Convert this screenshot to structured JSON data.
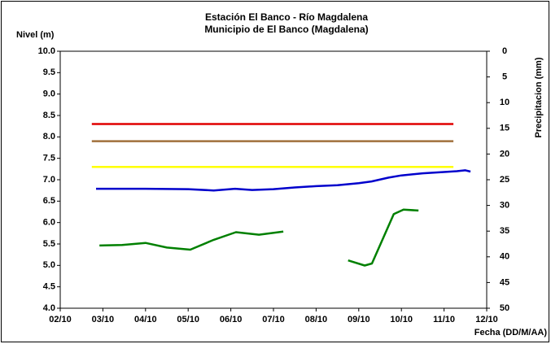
{
  "chart_data": {
    "type": "line",
    "title": "Estación El Banco - Río Magdalena",
    "subtitle": "Municipio de El Banco (Magdalena)",
    "y_label": "Nivel (m)",
    "y2_label": "Precipitacion (mm)",
    "x_label": "Fecha (DD/M/AA)",
    "xlim": [
      0,
      10
    ],
    "xticks": [
      {
        "value": 0,
        "label": "02/10"
      },
      {
        "value": 1,
        "label": "03/10"
      },
      {
        "value": 2,
        "label": "04/10"
      },
      {
        "value": 3,
        "label": "05/10"
      },
      {
        "value": 4,
        "label": "06/10"
      },
      {
        "value": 5,
        "label": "07/10"
      },
      {
        "value": 6,
        "label": "08/10"
      },
      {
        "value": 7,
        "label": "09/10"
      },
      {
        "value": 8,
        "label": "10/10"
      },
      {
        "value": 9,
        "label": "11/10"
      },
      {
        "value": 10,
        "label": "12/10"
      }
    ],
    "ylim": [
      4,
      10
    ],
    "yticks": [
      {
        "value": 4,
        "label": "4.0"
      },
      {
        "value": 4.5,
        "label": "4.5"
      },
      {
        "value": 5,
        "label": "5.0"
      },
      {
        "value": 5.5,
        "label": "5.5"
      },
      {
        "value": 6,
        "label": "6.0"
      },
      {
        "value": 6.5,
        "label": "6.5"
      },
      {
        "value": 7,
        "label": "7.0"
      },
      {
        "value": 7.5,
        "label": "7.5"
      },
      {
        "value": 8,
        "label": "8.0"
      },
      {
        "value": 8.5,
        "label": "8.5"
      },
      {
        "value": 9,
        "label": "9.0"
      },
      {
        "value": 9.5,
        "label": "9.5"
      },
      {
        "value": 10,
        "label": "10.0"
      }
    ],
    "y2lim": [
      50,
      0
    ],
    "y2ticks": [
      0,
      5,
      10,
      15,
      20,
      25,
      30,
      35,
      40,
      45,
      50
    ],
    "grid": false,
    "series": [
      {
        "color": "#e00000",
        "x": [
          0.74,
          9.22
        ],
        "values": [
          8.3,
          8.3
        ]
      },
      {
        "color": "#a0703c",
        "x": [
          0.74,
          9.22
        ],
        "values": [
          7.9,
          7.9
        ]
      },
      {
        "color": "#ffff00",
        "x": [
          0.74,
          9.22
        ],
        "values": [
          7.3,
          7.3
        ]
      },
      {
        "color": "#0000cc",
        "x": [
          0.84,
          2,
          3,
          3.6,
          4.1,
          4.5,
          5,
          5.5,
          6,
          6.5,
          7,
          7.3,
          7.7,
          8,
          8.5,
          9,
          9.3,
          9.5,
          9.62
        ],
        "values": [
          6.79,
          6.79,
          6.78,
          6.75,
          6.79,
          6.76,
          6.78,
          6.82,
          6.85,
          6.87,
          6.92,
          6.96,
          7.05,
          7.1,
          7.15,
          7.18,
          7.2,
          7.22,
          7.19
        ]
      },
      {
        "color": "#008000",
        "axis": "y2",
        "x": [
          0.92,
          1.45,
          2.0,
          2.5,
          3.05,
          3.6,
          4.12,
          4.66,
          5.23,
          6.0,
          6.75,
          7.14,
          7.31,
          7.82,
          8.05,
          8.4
        ],
        "values": [
          37.8,
          37.7,
          37.3,
          38.2,
          38.6,
          36.7,
          35.2,
          35.7,
          35.1,
          null,
          40.7,
          41.7,
          41.3,
          31.7,
          30.8,
          31.0
        ]
      }
    ]
  }
}
